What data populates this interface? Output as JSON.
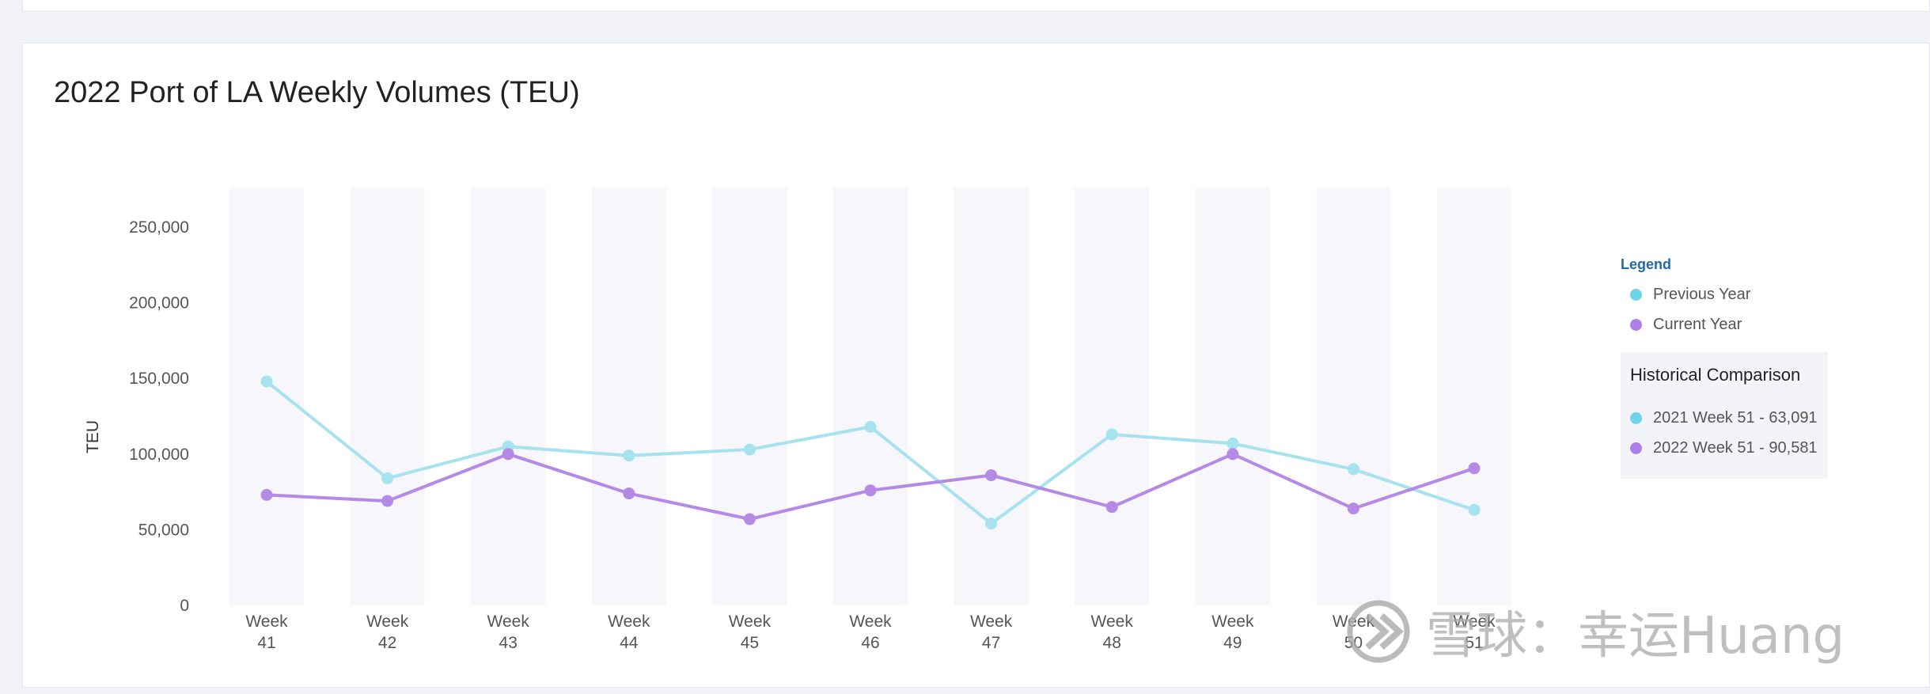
{
  "title": "2022 Port of LA Weekly Volumes (TEU)",
  "chart_data": {
    "type": "line",
    "ylabel": "TEU",
    "xlabel": "",
    "ylim": [
      0,
      250000
    ],
    "yticks": [
      0,
      50000,
      100000,
      150000,
      200000,
      250000
    ],
    "ytick_labels": [
      "0",
      "50,000",
      "100,000",
      "150,000",
      "200,000",
      "250,000"
    ],
    "categories": [
      [
        "Week",
        "41"
      ],
      [
        "Week",
        "42"
      ],
      [
        "Week",
        "43"
      ],
      [
        "Week",
        "44"
      ],
      [
        "Week",
        "45"
      ],
      [
        "Week",
        "46"
      ],
      [
        "Week",
        "47"
      ],
      [
        "Week",
        "48"
      ],
      [
        "Week",
        "49"
      ],
      [
        "Week",
        "50"
      ],
      [
        "Week",
        "51"
      ]
    ],
    "series": [
      {
        "name": "Previous Year",
        "color": "#a6e3ef",
        "values": [
          148000,
          84000,
          105000,
          99000,
          103000,
          118000,
          54000,
          113000,
          107000,
          90000,
          63091
        ]
      },
      {
        "name": "Current Year",
        "color": "#b589e6",
        "values": [
          73000,
          69000,
          100000,
          74000,
          57000,
          76000,
          86000,
          65000,
          100000,
          64000,
          90581
        ]
      }
    ],
    "grid": false,
    "legend_position": "right"
  },
  "legend": {
    "title": "Legend",
    "items": [
      {
        "label": "Previous Year",
        "color": "#6fd4ea"
      },
      {
        "label": "Current Year",
        "color": "#b07ee8"
      }
    ]
  },
  "historical": {
    "title": "Historical Comparison",
    "items": [
      {
        "label": "2021 Week 51 - 63,091",
        "color": "#6fd4ea"
      },
      {
        "label": "2022 Week 51 - 90,581",
        "color": "#b07ee8"
      }
    ]
  },
  "watermark": {
    "text": "雪球：幸运Huang"
  }
}
